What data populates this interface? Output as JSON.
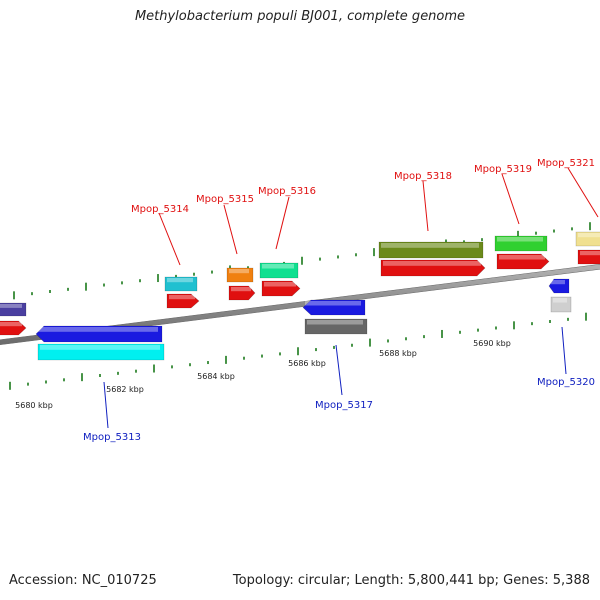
{
  "title": "Methylobacterium populi BJ001, complete genome",
  "footer": {
    "accession": "Accession: NC_010725",
    "summary": "Topology: circular; Length: 5,800,441 bp; Genes: 5,388"
  },
  "scale_labels": [
    "5680 kbp",
    "5682 kbp",
    "5684 kbp",
    "5686 kbp",
    "5688 kbp",
    "5690 kbp"
  ],
  "gene_labels": [
    {
      "text": "Mpop_5313",
      "strand": "minus"
    },
    {
      "text": "Mpop_5314",
      "strand": "plus"
    },
    {
      "text": "Mpop_5315",
      "strand": "plus"
    },
    {
      "text": "Mpop_5316",
      "strand": "plus"
    },
    {
      "text": "Mpop_5317",
      "strand": "minus"
    },
    {
      "text": "Mpop_5318",
      "strand": "plus"
    },
    {
      "text": "Mpop_5319",
      "strand": "plus"
    },
    {
      "text": "Mpop_5320",
      "strand": "minus"
    },
    {
      "text": "Mpop_5321",
      "strand": "plus"
    }
  ],
  "colors": {
    "plus_label": "#e01010",
    "minus_label": "#1020c0",
    "backbone": "#8a8a8a",
    "tick": "#1a7a1a",
    "cds_plus": "#e01010",
    "cds_minus": "#cfcfcf"
  }
}
